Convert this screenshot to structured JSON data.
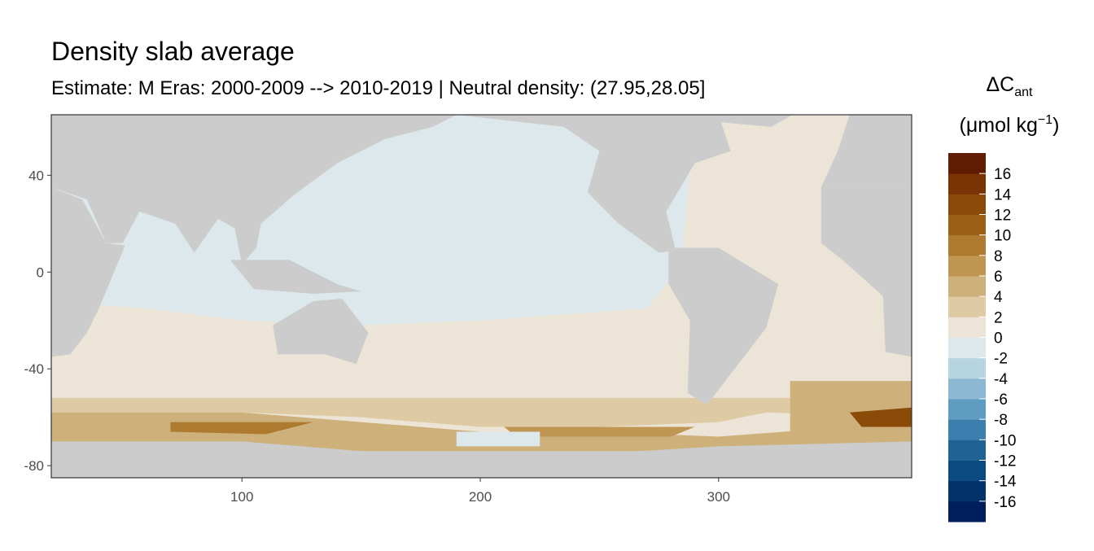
{
  "chart_data": {
    "type": "map",
    "title": "Density slab average",
    "subtitle": "Estimate: M Eras: 2000-2009 --> 2010-2019 | Neutral density: (27.95,28.05]",
    "xlim": [
      20,
      381
    ],
    "ylim": [
      -85,
      65
    ],
    "xticks": [
      100,
      200,
      300
    ],
    "yticks": [
      -80,
      -40,
      0,
      40
    ],
    "grid": true,
    "land_color": "#cccccc",
    "legend": {
      "title": [
        "ΔC",
        "ant"
      ],
      "units": [
        "(μmol kg",
        "−1",
        ")"
      ],
      "bins": [
        -18,
        -16,
        -14,
        -12,
        -10,
        -8,
        -6,
        -4,
        -2,
        0,
        2,
        4,
        6,
        8,
        10,
        12,
        14,
        16,
        18
      ],
      "colors": [
        "#001d5c",
        "#02326a",
        "#0b4a80",
        "#1f6395",
        "#3c7fae",
        "#5f9cc2",
        "#8cb8d3",
        "#b7d4e2",
        "#dde8ec",
        "#ece4d6",
        "#dfcba3",
        "#ceb07a",
        "#bf9652",
        "#ad7a30",
        "#9b5f16",
        "#8a4a08",
        "#7a3304",
        "#5f1c03"
      ],
      "ticks": [
        -16,
        -14,
        -12,
        -10,
        -8,
        -6,
        -4,
        -2,
        0,
        2,
        4,
        6,
        8,
        10,
        12,
        14,
        16
      ]
    }
  }
}
